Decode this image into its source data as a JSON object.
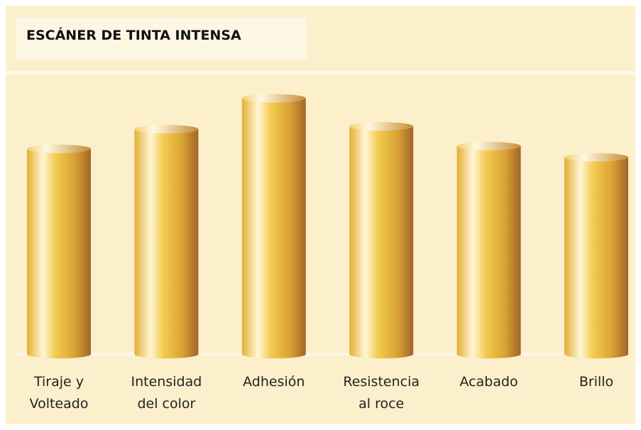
{
  "chart_data": {
    "type": "bar",
    "title": "ESCÁNER DE TINTA INTENSA",
    "categories": [
      "Tiraje y\nVolteado",
      "Intensidad\ndel color",
      "Adhesión",
      "Resistencia\nal roce",
      "Acabado",
      "Brillo"
    ],
    "values": [
      73,
      80,
      91,
      81,
      74,
      70
    ],
    "color": "#e9b73c",
    "ylim": [
      0,
      100
    ]
  }
}
